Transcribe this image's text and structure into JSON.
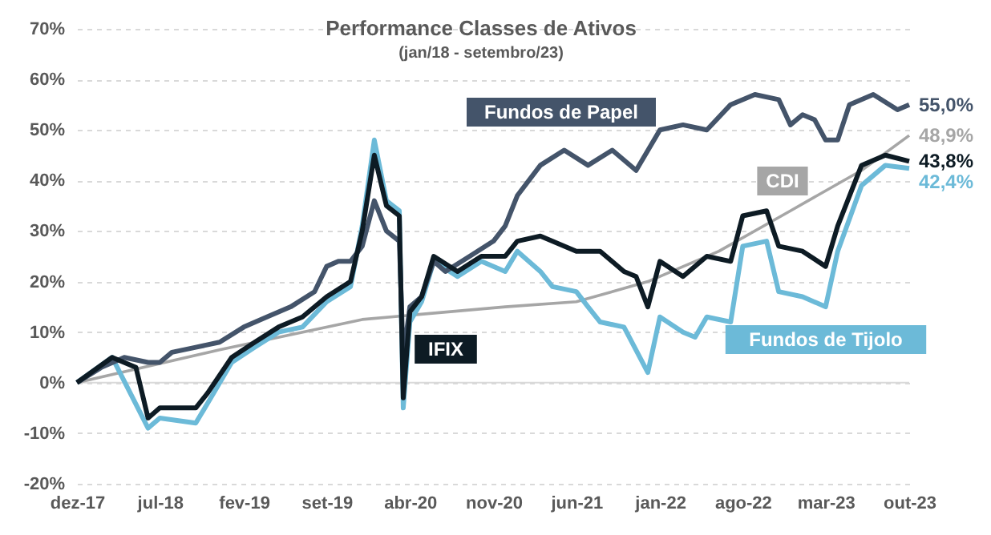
{
  "chart_data": {
    "type": "line",
    "title": "Performance Classes de Ativos",
    "subtitle": "(jan/18 - setembro/23)",
    "series": [
      {
        "name": "CDI",
        "color": "#a6a6a6",
        "x": [
          "2017-12",
          "2018-12",
          "2019-12",
          "2020-12",
          "2021-06",
          "2021-12",
          "2022-06",
          "2022-12",
          "2023-06",
          "2023-10"
        ],
        "values": [
          0,
          6.5,
          12.5,
          15,
          16,
          20,
          26,
          34,
          42,
          48.9
        ]
      },
      {
        "name": "Fundos de Tijolo",
        "color": "#6cbad8",
        "x": [
          "2017-12",
          "2018-03",
          "2018-06",
          "2018-07",
          "2018-10",
          "2018-11",
          "2019-01",
          "2019-03",
          "2019-05",
          "2019-07",
          "2019-09",
          "2019-11",
          "2019-12",
          "2020-01",
          "2020-02",
          "2020-03-05",
          "2020-03-15",
          "2020-04",
          "2020-05",
          "2020-06",
          "2020-08",
          "2020-10",
          "2020-12",
          "2021-01",
          "2021-03",
          "2021-04",
          "2021-06",
          "2021-07",
          "2021-08",
          "2021-10",
          "2021-12",
          "2022-01",
          "2022-03",
          "2022-04",
          "2022-05",
          "2022-07",
          "2022-08",
          "2022-10",
          "2022-11",
          "2023-01",
          "2023-03",
          "2023-04",
          "2023-06",
          "2023-08",
          "2023-10"
        ],
        "values": [
          0,
          5,
          -9,
          -7,
          -8,
          -4,
          4,
          7,
          10,
          11,
          16,
          19,
          31,
          48,
          36,
          34,
          -5,
          12,
          16,
          24,
          21,
          24,
          22,
          26,
          22,
          19,
          18,
          15,
          12,
          11,
          2,
          13,
          10,
          9,
          13,
          12,
          27,
          28,
          18,
          17,
          15,
          26,
          39,
          43,
          42.4
        ]
      },
      {
        "name": "Fundos de Papel",
        "color": "#44546a",
        "x": [
          "2017-12",
          "2018-02",
          "2018-04",
          "2018-06",
          "2018-07",
          "2018-08",
          "2018-10",
          "2018-12",
          "2019-02",
          "2019-04",
          "2019-06",
          "2019-08",
          "2019-09",
          "2019-10",
          "2019-11",
          "2019-12",
          "2020-01",
          "2020-02",
          "2020-03-05",
          "2020-03-15",
          "2020-04",
          "2020-05",
          "2020-06",
          "2020-07",
          "2020-09",
          "2020-11",
          "2020-12",
          "2021-01",
          "2021-03",
          "2021-05",
          "2021-07",
          "2021-09",
          "2021-11",
          "2022-01",
          "2022-03",
          "2022-05",
          "2022-07",
          "2022-09",
          "2022-11",
          "2022-12",
          "2023-01",
          "2023-02",
          "2023-03",
          "2023-04",
          "2023-05",
          "2023-07",
          "2023-09",
          "2023-10"
        ],
        "values": [
          0,
          3,
          5,
          4,
          4,
          6,
          7,
          8,
          11,
          13,
          15,
          18,
          23,
          24,
          24,
          27,
          36,
          30,
          28,
          5,
          15,
          17,
          24,
          22,
          25,
          28,
          31,
          37,
          43,
          46,
          43,
          46,
          42,
          50,
          51,
          50,
          55,
          57,
          56,
          51,
          53,
          52,
          48,
          48,
          55,
          57,
          54,
          55
        ]
      },
      {
        "name": "IFIX",
        "color": "#0d1b24",
        "x": [
          "2017-12",
          "2018-03",
          "2018-05",
          "2018-06",
          "2018-07",
          "2018-10",
          "2018-11",
          "2019-01",
          "2019-03",
          "2019-05",
          "2019-07",
          "2019-09",
          "2019-11",
          "2019-12",
          "2020-01",
          "2020-02",
          "2020-03-05",
          "2020-03-15",
          "2020-04",
          "2020-05",
          "2020-06",
          "2020-08",
          "2020-10",
          "2020-12",
          "2021-01",
          "2021-03",
          "2021-06",
          "2021-08",
          "2021-10",
          "2021-11",
          "2021-12",
          "2022-01",
          "2022-03",
          "2022-05",
          "2022-07",
          "2022-08",
          "2022-10",
          "2022-11",
          "2023-01",
          "2023-03",
          "2023-04",
          "2023-06",
          "2023-08",
          "2023-10"
        ],
        "values": [
          0,
          5,
          3,
          -7,
          -5,
          -5,
          -2,
          5,
          8,
          11,
          13,
          17,
          20,
          30,
          45,
          35,
          33,
          -3,
          14,
          17,
          25,
          22,
          25,
          25,
          28,
          29,
          26,
          26,
          22,
          21,
          15,
          24,
          21,
          25,
          24,
          33,
          34,
          27,
          26,
          23,
          31,
          43,
          45,
          43.8
        ]
      }
    ],
    "annotations": [
      {
        "text": "48,9%",
        "x": "2023-10",
        "y": 48.9
      },
      {
        "text": "42,4%",
        "x": "2023-10",
        "y": 42.4
      },
      {
        "text": "55,0%",
        "x": "2023-10",
        "y": 55
      },
      {
        "text": "43,8%",
        "x": "2023-10",
        "y": 43.8
      }
    ],
    "xlim": [
      "2017-12",
      "2023-10"
    ],
    "xticks": [
      {
        "value": "2017-12",
        "label": "dez-17"
      },
      {
        "value": "2018-07",
        "label": "jul-18"
      },
      {
        "value": "2019-02",
        "label": "fev-19"
      },
      {
        "value": "2019-09",
        "label": "set-19"
      },
      {
        "value": "2020-04",
        "label": "abr-20"
      },
      {
        "value": "2020-11",
        "label": "nov-20"
      },
      {
        "value": "2021-06",
        "label": "jun-21"
      },
      {
        "value": "2022-01",
        "label": "jan-22"
      },
      {
        "value": "2022-08",
        "label": "ago-22"
      },
      {
        "value": "2023-03",
        "label": "mar-23"
      },
      {
        "value": "2023-10",
        "label": "out-23"
      }
    ],
    "ylim": [
      -20,
      70
    ],
    "yticks": [
      {
        "value": -20,
        "label": "-20%"
      },
      {
        "value": -10,
        "label": "-10%"
      },
      {
        "value": 0,
        "label": "0%"
      },
      {
        "value": 10,
        "label": "10%"
      },
      {
        "value": 20,
        "label": "20%"
      },
      {
        "value": 30,
        "label": "30%"
      },
      {
        "value": 40,
        "label": "40%"
      },
      {
        "value": 50,
        "label": "50%"
      },
      {
        "value": 60,
        "label": "60%"
      },
      {
        "value": 70,
        "label": "70%"
      }
    ],
    "ref_lines": [
      {
        "axis": "y",
        "value": 0,
        "color": "#d9d9d9",
        "line_style": "solid"
      }
    ],
    "grid": "y",
    "legend": false,
    "line_style": "solid",
    "marker": "none"
  }
}
